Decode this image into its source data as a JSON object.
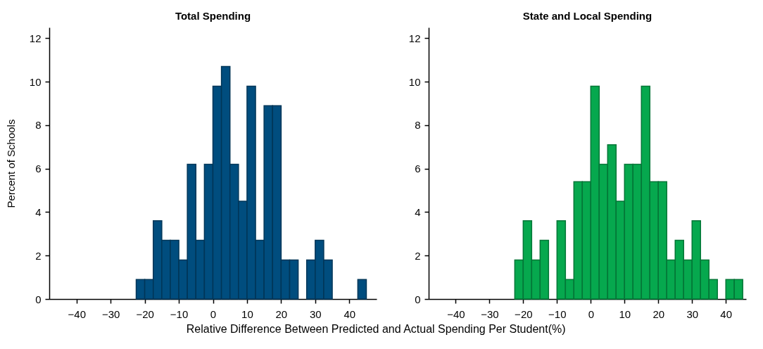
{
  "chart_data": [
    {
      "type": "histogram",
      "title": "Total Spending",
      "xlabel": "Relative Difference Between Predicted and Actual Spending Per Student(%)",
      "ylabel": "Percent of Schools",
      "color": "#004d7e",
      "bins": [
        -22.5,
        -20,
        -17.5,
        -15,
        -12.5,
        -10,
        -7.5,
        -5,
        -2.5,
        0,
        2.5,
        5,
        7.5,
        10,
        12.5,
        15,
        17.5,
        20,
        22.5,
        25,
        27.5,
        30,
        32.5,
        35,
        37.5,
        40,
        42.5,
        45
      ],
      "values": [
        0.9,
        0.9,
        3.6,
        2.7,
        2.7,
        1.8,
        6.2,
        2.7,
        6.2,
        9.8,
        10.7,
        6.2,
        4.5,
        9.8,
        2.7,
        8.9,
        8.9,
        1.8,
        1.8,
        0,
        1.8,
        2.7,
        1.8,
        0,
        0,
        0,
        0.9
      ],
      "xlim": [
        -48,
        48
      ],
      "xticks": [
        -40,
        -30,
        -20,
        -10,
        0,
        10,
        20,
        30,
        40
      ],
      "ylim": [
        0,
        12.5
      ],
      "yticks": [
        0,
        2,
        4,
        6,
        8,
        10,
        12
      ],
      "grid": false
    },
    {
      "type": "histogram",
      "title": "State and Local Spending",
      "color": "#06a84e",
      "bins": [
        -22.5,
        -20,
        -17.5,
        -15,
        -12.5,
        -10,
        -7.5,
        -5,
        -2.5,
        0,
        2.5,
        5,
        7.5,
        10,
        12.5,
        15,
        17.5,
        20,
        22.5,
        25,
        27.5,
        30,
        32.5,
        35,
        37.5,
        40,
        42.5,
        45
      ],
      "values": [
        1.8,
        3.6,
        1.8,
        2.7,
        0,
        3.6,
        0.9,
        5.4,
        5.4,
        9.8,
        6.2,
        7.1,
        4.5,
        6.2,
        6.2,
        9.8,
        5.4,
        5.4,
        1.8,
        2.7,
        1.8,
        3.6,
        1.8,
        0.9,
        0,
        0.9,
        0.9
      ],
      "xlim": [
        -48,
        46
      ],
      "xticks": [
        -40,
        -30,
        -20,
        -10,
        0,
        10,
        20,
        30,
        40
      ],
      "ylim": [
        0,
        12.5
      ],
      "yticks": [
        0,
        2,
        4,
        6,
        8,
        10,
        12
      ],
      "grid": false
    }
  ]
}
